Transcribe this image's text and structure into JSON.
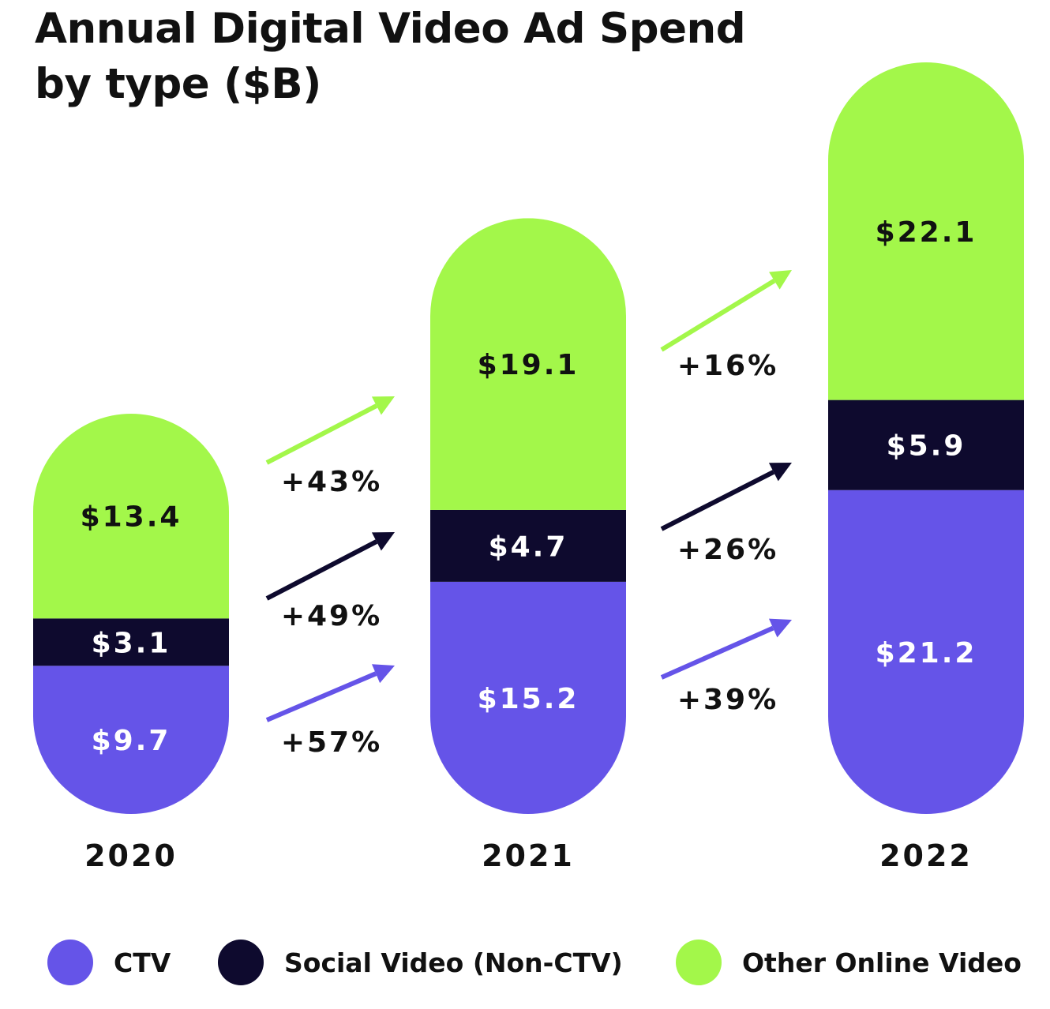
{
  "title_lines": [
    "Annual Digital Video Ad Spend",
    "by type ($B)"
  ],
  "colors": {
    "ctv": "#6554e8",
    "social": "#0e0a2e",
    "other": "#a3f74a",
    "text_dark": "#111111",
    "text_light": "#ffffff"
  },
  "chart_data": {
    "type": "bar",
    "stacked": true,
    "title": "Annual Digital Video Ad Spend by type ($B)",
    "categories": [
      "2020",
      "2021",
      "2022"
    ],
    "series": [
      {
        "name": "CTV",
        "key": "ctv",
        "values": [
          9.7,
          15.2,
          21.2
        ],
        "labels": [
          "$9.7",
          "$15.2",
          "$21.2"
        ]
      },
      {
        "name": "Social Video (Non-CTV)",
        "key": "social",
        "values": [
          3.1,
          4.7,
          5.9
        ],
        "labels": [
          "$3.1",
          "$4.7",
          "$5.9"
        ]
      },
      {
        "name": "Other Online Video",
        "key": "other",
        "values": [
          13.4,
          19.1,
          22.1
        ],
        "labels": [
          "$13.4",
          "$19.1",
          "$22.1"
        ]
      }
    ],
    "growth": [
      {
        "from": "2020",
        "to": "2021",
        "other": "+43%",
        "social": "+49%",
        "ctv": "+57%"
      },
      {
        "from": "2021",
        "to": "2022",
        "other": "+16%",
        "social": "+26%",
        "ctv": "+39%"
      }
    ],
    "legend_position": "bottom",
    "grid": false
  },
  "legend": [
    {
      "label": "CTV",
      "key": "ctv"
    },
    {
      "label": "Social Video (Non-CTV)",
      "key": "social"
    },
    {
      "label": "Other Online Video",
      "key": "other"
    }
  ]
}
